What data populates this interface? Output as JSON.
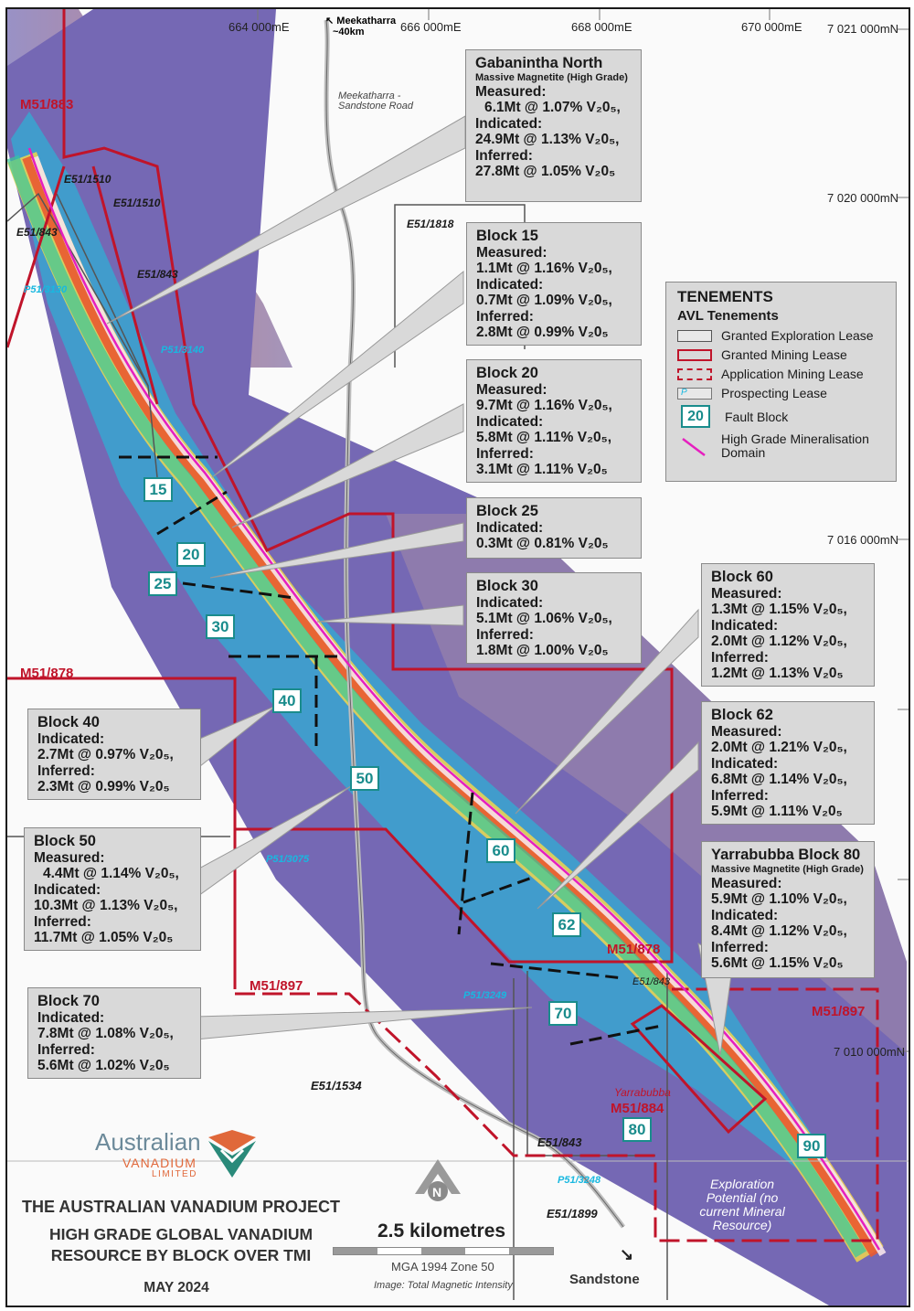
{
  "title": {
    "line1": "THE AUSTRALIAN VANADIUM PROJECT",
    "line2": "HIGH GRADE GLOBAL VANADIUM",
    "line3": "RESOURCE BY BLOCK OVER TMI",
    "date": "MAY 2024"
  },
  "logo": {
    "line1": "Australian",
    "line2": "VANADIUM",
    "line3": "LIMITED"
  },
  "scale": {
    "label": "2.5 kilometres",
    "datum": "MGA 1994 Zone 50",
    "image_note": "Image: Total Magnetic Intensity"
  },
  "north": "N",
  "coords": {
    "e1": "664 000mE",
    "e2": "666 000mE",
    "e3": "668 000mE",
    "e4": "670 000mE",
    "n1": "7 021 000mN",
    "n2": "7 020 000mN",
    "n3": "7 016 000mN",
    "n4": "7 010 000mN"
  },
  "places": {
    "meekatharra": "Meekatharra",
    "meekatharra_dist": "~40km",
    "road": "Meekatharra - Sandstone Road",
    "sandstone": "Sandstone",
    "exploration": "Exploration Potential (no current Mineral Resource)"
  },
  "tenements": {
    "m51_883": "M51/883",
    "m51_878_a": "M51/878",
    "m51_878_b": "M51/878",
    "m51_897_a": "M51/897",
    "m51_897_b": "M51/897",
    "m51_884": "M51/884",
    "yarrabubba": "Yarrabubba",
    "e51_1510_a": "E51/1510",
    "e51_1510_b": "E51/1510",
    "e51_843_a": "E51/843",
    "e51_843_b": "E51/843",
    "e51_843_c": "E51/843",
    "e51_843_d": "E51/843",
    "e51_1818": "E51/1818",
    "e51_1534": "E51/1534",
    "e51_1899": "E51/1899",
    "p51_3130": "P51/3130",
    "p51_3140": "P51/3140",
    "p51_3075": "P51/3075",
    "p51_3249": "P51/3249",
    "p51_3248": "P51/3248"
  },
  "legend": {
    "title": "TENEMENTS",
    "subtitle": "AVL Tenements",
    "items": [
      "Granted Exploration Lease",
      "Granted Mining Lease",
      "Application Mining Lease",
      "Prospecting Lease",
      "Fault Block",
      "High Grade Mineralisation Domain"
    ],
    "fault_sample": "20",
    "prospect_sample": "P",
    "colors": {
      "exploration": "#555555",
      "mining": "#c0142a",
      "prospect": "#19b8e0",
      "fault": "#1a8c8c",
      "domain": "#e61fbf"
    }
  },
  "fault_blocks": [
    "15",
    "20",
    "25",
    "30",
    "40",
    "50",
    "60",
    "62",
    "70",
    "80",
    "90"
  ],
  "resources": {
    "gab": {
      "title": "Gabanintha North",
      "subtitle": "Massive Magnetite (High Grade)",
      "l1": "Measured:",
      "v1": "6.1Mt @ 1.07% V₂0₅,",
      "l2": "Indicated:",
      "v2": "24.9Mt @ 1.13% V₂0₅,",
      "l3": "Inferred:",
      "v3": "27.8Mt @ 1.05% V₂0₅"
    },
    "b15": {
      "title": "Block 15",
      "l1": "Measured:",
      "v1": "1.1Mt @ 1.16% V₂0₅,",
      "l2": "Indicated:",
      "v2": "0.7Mt @ 1.09% V₂0₅,",
      "l3": "Inferred:",
      "v3": "2.8Mt @ 0.99% V₂0₅"
    },
    "b20": {
      "title": "Block 20",
      "l1": "Measured:",
      "v1": "9.7Mt @ 1.16% V₂0₅,",
      "l2": "Indicated:",
      "v2": "5.8Mt @ 1.11% V₂0₅,",
      "l3": "Inferred:",
      "v3": "3.1Mt @ 1.11% V₂0₅"
    },
    "b25": {
      "title": "Block 25",
      "l1": "Indicated:",
      "v1": "0.3Mt @ 0.81% V₂0₅"
    },
    "b30": {
      "title": "Block 30",
      "l1": "Indicated:",
      "v1": "5.1Mt @ 1.06% V₂0₅,",
      "l2": "Inferred:",
      "v2": "1.8Mt @ 1.00% V₂0₅"
    },
    "b40": {
      "title": "Block 40",
      "l1": "Indicated:",
      "v1": "2.7Mt @ 0.97% V₂0₅,",
      "l2": "Inferred:",
      "v2": "2.3Mt @ 0.99% V₂0₅"
    },
    "b50": {
      "title": "Block 50",
      "l1": "Measured:",
      "v1": "4.4Mt @ 1.14% V₂0₅,",
      "l2": "Indicated:",
      "v2": "10.3Mt @ 1.13% V₂0₅,",
      "l3": "Inferred:",
      "v3": "11.7Mt @ 1.05% V₂0₅"
    },
    "b60": {
      "title": "Block 60",
      "l1": "Measured:",
      "v1": "1.3Mt @ 1.15% V₂0₅,",
      "l2": "Indicated:",
      "v2": "2.0Mt @ 1.12% V₂0₅,",
      "l3": "Inferred:",
      "v3": "1.2Mt @ 1.13% V₂0₅"
    },
    "b62": {
      "title": "Block 62",
      "l1": "Measured:",
      "v1": "2.0Mt @ 1.21% V₂0₅,",
      "l2": "Indicated:",
      "v2": "6.8Mt @ 1.14% V₂0₅,",
      "l3": "Inferred:",
      "v3": "5.9Mt @ 1.11% V₂0₅"
    },
    "b70": {
      "title": "Block 70",
      "l1": "Indicated:",
      "v1": "7.8Mt @ 1.08% V₂0₅,",
      "l2": "Inferred:",
      "v2": "5.6Mt @ 1.02% V₂0₅"
    },
    "b80": {
      "title": "Yarrabubba Block 80",
      "subtitle": "Massive Magnetite (High Grade)",
      "l1": "Measured:",
      "v1": "5.9Mt @ 1.10% V₂0₅,",
      "l2": "Indicated:",
      "v2": "8.4Mt @ 1.12% V₂0₅,",
      "l3": "Inferred:",
      "v3": "5.6Mt @ 1.15% V₂0₅"
    }
  }
}
